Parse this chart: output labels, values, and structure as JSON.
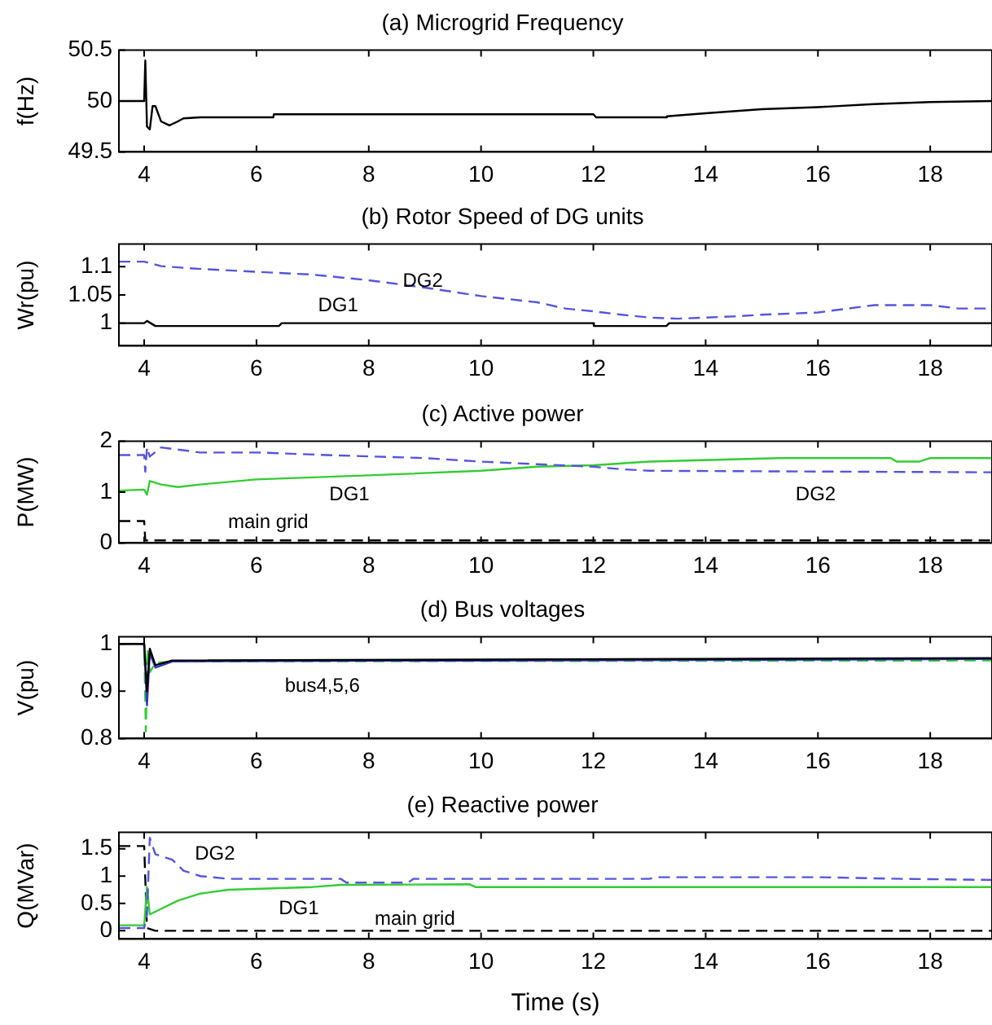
{
  "chart_data": [
    {
      "type": "line",
      "title": "(a) Microgrid Frequency",
      "ylabel": "f(Hz)",
      "xlim": [
        3.55,
        19.1
      ],
      "xticks": [
        4,
        6,
        8,
        10,
        12,
        14,
        16,
        18
      ],
      "ylim": [
        49.5,
        50.5
      ],
      "yticks": [
        49.5,
        50,
        50.5
      ],
      "grid": false,
      "legend": false,
      "marker": "none",
      "series": [
        {
          "color": "#000000",
          "line_style": "solid",
          "x": [
            3.55,
            4.0,
            4.02,
            4.05,
            4.1,
            4.15,
            4.2,
            4.3,
            4.45,
            4.6,
            4.7,
            5.0,
            6.3,
            6.31,
            12.0,
            12.05,
            13.3,
            13.31,
            14.0,
            15.0,
            16.0,
            17.0,
            18.0,
            19.1
          ],
          "values": [
            50,
            50,
            50.4,
            49.75,
            49.72,
            49.95,
            49.95,
            49.8,
            49.76,
            49.8,
            49.83,
            49.84,
            49.84,
            49.87,
            49.87,
            49.84,
            49.84,
            49.85,
            49.88,
            49.92,
            49.94,
            49.97,
            49.99,
            50
          ]
        }
      ]
    },
    {
      "type": "line",
      "title": "(b) Rotor Speed of DG units",
      "ylabel": "Wr(pu)",
      "xlim": [
        3.55,
        19.1
      ],
      "xticks": [
        4,
        6,
        8,
        10,
        12,
        14,
        16,
        18
      ],
      "ylim": [
        0.96,
        1.14
      ],
      "yticks": [
        1,
        1.05,
        1.1
      ],
      "grid": false,
      "legend": false,
      "marker": "none",
      "series": [
        {
          "name": "DG2",
          "color": "#5555dd",
          "line_style": "dashed",
          "x": [
            3.55,
            4.0,
            4.3,
            5.0,
            7.0,
            8.0,
            9.0,
            10.0,
            11.0,
            11.5,
            12.0,
            12.5,
            13.0,
            13.5,
            14.5,
            15.0,
            16.0,
            17.0,
            18.0,
            18.5,
            19.1
          ],
          "values": [
            1.109,
            1.109,
            1.101,
            1.096,
            1.086,
            1.076,
            1.063,
            1.048,
            1.037,
            1.026,
            1.021,
            1.015,
            1.01,
            1.008,
            1.012,
            1.015,
            1.019,
            1.032,
            1.032,
            1.026,
            1.026
          ]
        },
        {
          "name": "DG1",
          "color": "#000000",
          "line_style": "solid",
          "x": [
            3.55,
            4.0,
            4.05,
            4.2,
            6.4,
            6.45,
            12.0,
            12.01,
            13.3,
            13.35,
            19.1
          ],
          "values": [
            1,
            1,
            1.004,
            0.995,
            0.995,
            1,
            1,
            0.995,
            0.995,
            1,
            1
          ]
        }
      ]
    },
    {
      "type": "line",
      "title": "(c) Active power",
      "ylabel": "P(MW)",
      "xlim": [
        3.55,
        19.1
      ],
      "xticks": [
        4,
        6,
        8,
        10,
        12,
        14,
        16,
        18
      ],
      "ylim": [
        0,
        2
      ],
      "yticks": [
        0,
        1,
        2
      ],
      "grid": false,
      "legend": false,
      "marker": "none",
      "series": [
        {
          "name": "DG2",
          "color": "#5555dd",
          "line_style": "dashed",
          "x": [
            3.55,
            4.0,
            4.02,
            4.05,
            4.1,
            4.3,
            5.0,
            6.0,
            7.5,
            9.0,
            10.0,
            11.0,
            12.0,
            12.5,
            13.0,
            19.1
          ],
          "values": [
            1.73,
            1.73,
            1.4,
            1.88,
            1.7,
            1.88,
            1.78,
            1.78,
            1.72,
            1.67,
            1.6,
            1.55,
            1.5,
            1.45,
            1.42,
            1.39
          ]
        },
        {
          "name": "DG1",
          "color": "#33cc33",
          "line_style": "solid",
          "x": [
            3.55,
            4.0,
            4.05,
            4.1,
            4.3,
            4.6,
            5.0,
            6.0,
            8.0,
            10.0,
            11.0,
            12.0,
            13.0,
            15.3,
            17.3,
            17.4,
            17.8,
            18.0,
            19.1
          ],
          "values": [
            1.03,
            1.05,
            0.95,
            1.22,
            1.15,
            1.1,
            1.15,
            1.25,
            1.33,
            1.42,
            1.5,
            1.53,
            1.6,
            1.67,
            1.67,
            1.6,
            1.6,
            1.67,
            1.67
          ]
        },
        {
          "name": "main grid",
          "color": "#000000",
          "line_style": "dashed",
          "x": [
            3.55,
            4.0,
            4.02,
            19.1
          ],
          "values": [
            0.43,
            0.43,
            0.05,
            0.05
          ]
        }
      ]
    },
    {
      "type": "line",
      "title": "(d) Bus voltages",
      "ylabel": "V(pu)",
      "xlim": [
        3.55,
        19.1
      ],
      "xticks": [
        4,
        6,
        8,
        10,
        12,
        14,
        16,
        18
      ],
      "ylim": [
        0.8,
        1.015
      ],
      "yticks": [
        0.8,
        0.9,
        1
      ],
      "grid": false,
      "legend": false,
      "marker": "none",
      "annotations": [
        "bus4,5,6"
      ],
      "series": [
        {
          "color": "#000000",
          "line_style": "solid",
          "x": [
            3.55,
            4.0,
            4.05,
            4.1,
            4.2,
            4.5,
            19.1
          ],
          "values": [
            1,
            1,
            0.9,
            0.99,
            0.955,
            0.965,
            0.97
          ]
        },
        {
          "color": "#3333cc",
          "line_style": "solid",
          "x": [
            3.55,
            4.0,
            4.05,
            4.1,
            4.2,
            4.5,
            19.1
          ],
          "values": [
            1,
            1,
            0.87,
            0.98,
            0.95,
            0.963,
            0.968
          ]
        },
        {
          "color": "#33cc33",
          "line_style": "dashed",
          "x": [
            3.55,
            4.0,
            4.03,
            4.06,
            4.1,
            4.2,
            4.5,
            19.1
          ],
          "values": [
            1,
            1,
            0.815,
            0.99,
            0.94,
            0.96,
            0.963,
            0.965
          ]
        }
      ]
    },
    {
      "type": "line",
      "title": "(e) Reactive power",
      "ylabel": "Q(MVar)",
      "xlabel": "Time (s)",
      "xlim": [
        3.55,
        19.1
      ],
      "xticks": [
        4,
        6,
        8,
        10,
        12,
        14,
        16,
        18
      ],
      "ylim": [
        -0.15,
        1.8
      ],
      "yticks": [
        0,
        0.5,
        1,
        1.5
      ],
      "grid": false,
      "legend": false,
      "marker": "none",
      "series": [
        {
          "name": "DG2",
          "color": "#5555dd",
          "line_style": "dashed",
          "x": [
            3.55,
            4.0,
            4.05,
            4.1,
            4.2,
            4.5,
            4.7,
            5.0,
            5.5,
            7.5,
            7.6,
            8.7,
            8.8,
            13.0,
            13.1,
            16.0,
            17.5,
            19.1
          ],
          "values": [
            0.05,
            0.05,
            0.3,
            1.7,
            1.4,
            1.3,
            1.1,
            1.0,
            0.95,
            0.95,
            0.88,
            0.88,
            0.95,
            0.95,
            0.98,
            0.98,
            0.95,
            0.93
          ]
        },
        {
          "name": "DG1",
          "color": "#33cc33",
          "line_style": "solid",
          "x": [
            3.55,
            4.0,
            4.05,
            4.1,
            4.3,
            4.6,
            5.0,
            5.5,
            7.0,
            7.5,
            9.8,
            9.9,
            19.1
          ],
          "values": [
            0.1,
            0.1,
            0.8,
            0.3,
            0.4,
            0.55,
            0.68,
            0.75,
            0.8,
            0.84,
            0.85,
            0.8,
            0.8
          ]
        },
        {
          "name": "main grid",
          "color": "#000000",
          "line_style": "dashed",
          "x": [
            3.55,
            4.0,
            4.05,
            4.2,
            19.1
          ],
          "values": [
            1.55,
            1.55,
            0.05,
            0,
            0
          ]
        }
      ]
    }
  ]
}
